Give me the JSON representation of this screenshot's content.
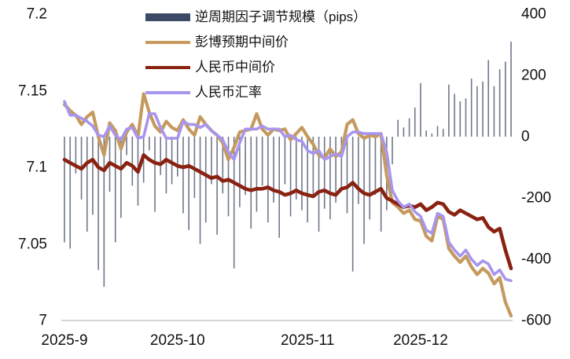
{
  "legend": {
    "items": [
      {
        "label": "逆周期因子调节规模（pips）",
        "swatch": "bar",
        "color": "#3d4a66"
      },
      {
        "label": "彭博预期中间价",
        "swatch": "line",
        "color": "#c59a5f"
      },
      {
        "label": "人民币中间价",
        "swatch": "line",
        "color": "#8a2212"
      },
      {
        "label": "人民币汇率",
        "swatch": "line",
        "color": "#a895ee"
      }
    ]
  },
  "chart_data": {
    "type": "combo-bar-line",
    "title": "",
    "x_axis": {
      "tick_labels": [
        "2025-9",
        "2025-10",
        "2025-11",
        "2025-12"
      ],
      "tick_indices": [
        0,
        20,
        43,
        63
      ],
      "points": 80
    },
    "left_axis": {
      "tick_labels": [
        "7.2",
        "7.15",
        "7.1",
        "7.05",
        "7"
      ],
      "tick_values": [
        7.2,
        7.15,
        7.1,
        7.05,
        7.0
      ],
      "min": 7.0,
      "max": 7.2
    },
    "right_axis": {
      "tick_labels": [
        "400",
        "200",
        "0",
        "-200",
        "-400",
        "-600"
      ],
      "tick_values": [
        400,
        200,
        0,
        -200,
        -400,
        -600
      ],
      "min": -600,
      "max": 400
    },
    "grid": "off",
    "legend_position": "top-center",
    "bar_series": {
      "name": "逆周期因子调节规模（pips）",
      "axis": "right",
      "color": "#70778a",
      "values": [
        -345,
        -365,
        -120,
        -205,
        -310,
        -255,
        -435,
        -490,
        -180,
        -345,
        -265,
        -60,
        -160,
        -225,
        -150,
        -45,
        -245,
        -125,
        -185,
        -155,
        -130,
        -250,
        -305,
        -200,
        -350,
        -280,
        -155,
        -320,
        -185,
        -260,
        -430,
        -230,
        -190,
        -300,
        -245,
        -160,
        -280,
        -215,
        -330,
        -155,
        -260,
        -205,
        -240,
        -280,
        -195,
        -310,
        -235,
        -270,
        -215,
        -180,
        -250,
        -440,
        -220,
        -350,
        -270,
        -190,
        -310,
        -240,
        -90,
        55,
        30,
        60,
        95,
        175,
        20,
        10,
        35,
        25,
        170,
        140,
        115,
        125,
        190,
        165,
        180,
        250,
        165,
        220,
        245,
        310
      ]
    },
    "line_series": [
      {
        "name": "彭博预期中间价",
        "axis": "left",
        "color": "#c59a5f",
        "stroke_width": 4.2,
        "values": [
          7.141,
          7.137,
          7.134,
          7.128,
          7.133,
          7.136,
          7.12,
          7.108,
          7.129,
          7.124,
          7.112,
          7.123,
          7.128,
          7.12,
          7.148,
          7.136,
          7.127,
          7.123,
          7.13,
          7.126,
          7.124,
          7.131,
          7.125,
          7.121,
          7.133,
          7.128,
          7.124,
          7.121,
          7.116,
          7.105,
          7.113,
          7.123,
          7.124,
          7.125,
          7.135,
          7.125,
          7.121,
          7.125,
          7.124,
          7.125,
          7.118,
          7.122,
          7.126,
          7.12,
          7.115,
          7.108,
          7.106,
          7.112,
          7.107,
          7.11,
          7.128,
          7.131,
          7.122,
          7.119,
          7.121,
          7.12,
          7.122,
          7.095,
          7.077,
          7.074,
          7.07,
          7.072,
          7.066,
          7.065,
          7.055,
          7.052,
          7.068,
          7.066,
          7.047,
          7.042,
          7.038,
          7.042,
          7.035,
          7.03,
          7.034,
          7.031,
          7.024,
          7.028,
          7.012,
          7.003
        ]
      },
      {
        "name": "人民币中间价",
        "axis": "left",
        "color": "#8a2212",
        "stroke_width": 4.6,
        "values": [
          7.105,
          7.103,
          7.101,
          7.099,
          7.103,
          7.105,
          7.1,
          7.098,
          7.103,
          7.101,
          7.099,
          7.103,
          7.101,
          7.097,
          7.108,
          7.105,
          7.103,
          7.102,
          7.105,
          7.103,
          7.101,
          7.1,
          7.101,
          7.099,
          7.097,
          7.095,
          7.093,
          7.094,
          7.091,
          7.092,
          7.09,
          7.088,
          7.086,
          7.085,
          7.086,
          7.086,
          7.087,
          7.085,
          7.084,
          7.082,
          7.083,
          7.085,
          7.083,
          7.082,
          7.081,
          7.084,
          7.085,
          7.083,
          7.082,
          7.086,
          7.087,
          7.09,
          7.086,
          7.083,
          7.082,
          7.084,
          7.086,
          7.08,
          7.078,
          7.076,
          7.074,
          7.075,
          7.074,
          7.076,
          7.072,
          7.074,
          7.077,
          7.076,
          7.071,
          7.069,
          7.072,
          7.07,
          7.068,
          7.066,
          7.067,
          7.061,
          7.058,
          7.06,
          7.046,
          7.034
        ]
      },
      {
        "name": "人民币汇率",
        "axis": "left",
        "color": "#a895ee",
        "stroke_width": 3.6,
        "values": [
          7.143,
          7.134,
          7.134,
          7.132,
          7.13,
          7.127,
          7.121,
          7.12,
          7.127,
          7.121,
          7.118,
          7.125,
          7.126,
          7.119,
          7.12,
          7.135,
          7.135,
          7.126,
          7.119,
          7.119,
          7.119,
          7.13,
          7.128,
          7.128,
          7.126,
          7.128,
          7.124,
          7.121,
          7.118,
          7.11,
          7.105,
          7.116,
          7.125,
          7.125,
          7.125,
          7.127,
          7.125,
          7.125,
          7.125,
          7.12,
          7.121,
          7.118,
          7.117,
          7.111,
          7.109,
          7.111,
          7.105,
          7.107,
          7.109,
          7.107,
          7.12,
          7.123,
          7.123,
          7.122,
          7.122,
          7.122,
          7.122,
          7.11,
          7.085,
          7.078,
          7.074,
          7.076,
          7.071,
          7.068,
          7.059,
          7.057,
          7.07,
          7.068,
          7.051,
          7.046,
          7.042,
          7.046,
          7.04,
          7.036,
          7.039,
          7.037,
          7.03,
          7.033,
          7.027,
          7.026
        ]
      }
    ],
    "baseline_color": "#c9c9d1"
  }
}
